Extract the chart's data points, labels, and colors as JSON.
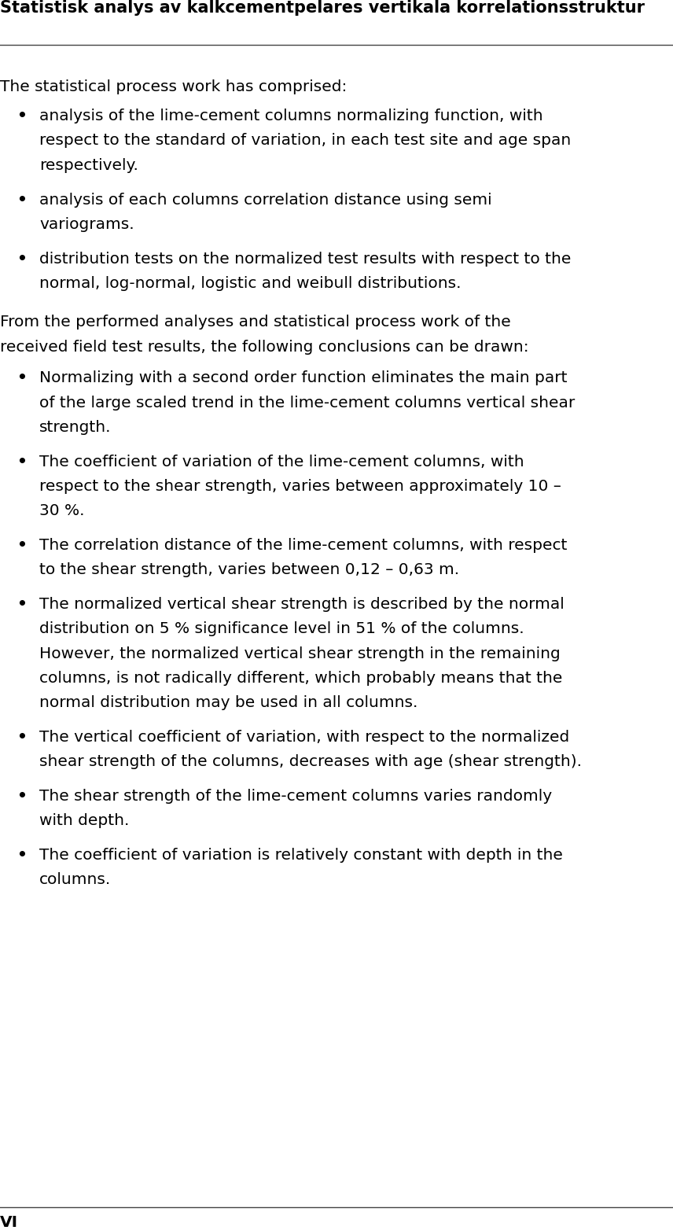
{
  "header_title": "Statistisk analys av kalkcementpelares vertikala korrelationsstruktur",
  "header_fontsize": 15,
  "body_fontsize": 14.5,
  "footer_label": "VI",
  "bg_color": "#ffffff",
  "text_color": "#000000",
  "intro_paragraph": "The statistical process work has comprised:",
  "bullet_items_intro": [
    "analysis of the lime-cement columns normalizing function, with respect to the standard of variation, in each test site and age span respectively.",
    "analysis of each columns correlation distance using semi variograms.",
    "distribution tests on the normalized test results with respect to the normal, log-normal, logistic and weibull distributions."
  ],
  "second_paragraph_line1": "From the performed analyses and statistical process work of the",
  "second_paragraph_line2": "received field test results, the following conclusions can be drawn:",
  "bullet_items_conclusions": [
    "Normalizing with a second order function eliminates the main part\nof the large scaled trend in the lime-cement columns vertical shear\nstrength.",
    "The coefficient of variation of the lime-cement columns, with\nrespect to the shear strength, varies between approximately 10 –\n30 %.",
    "The correlation distance of the lime-cement columns, with respect\nto the shear strength, varies between 0,12 – 0,63 m.",
    "The normalized vertical shear strength is described by the normal\ndistribution on 5 % significance level in 51 % of the columns.\nHowever, the normalized vertical shear strength in the remaining\ncolumns, is not radically different, which probably means that the\nnormal distribution may be used in all columns.",
    "The vertical coefficient of variation, with respect to the normalized\nshear strength of the columns, decreases with age (shear strength).",
    "The shear strength of the lime-cement columns varies randomly\nwith depth.",
    "The coefficient of variation is relatively constant with depth in the\ncolumns."
  ],
  "bullet_items_intro_wrapped": [
    [
      "analysis of the lime-cement columns normalizing function, with",
      "respect to the standard of variation, in each test site and age span",
      "respectively."
    ],
    [
      "analysis of each columns correlation distance using semi",
      "variograms."
    ],
    [
      "distribution tests on the normalized test results with respect to the",
      "normal, log-normal, logistic and weibull distributions."
    ]
  ]
}
